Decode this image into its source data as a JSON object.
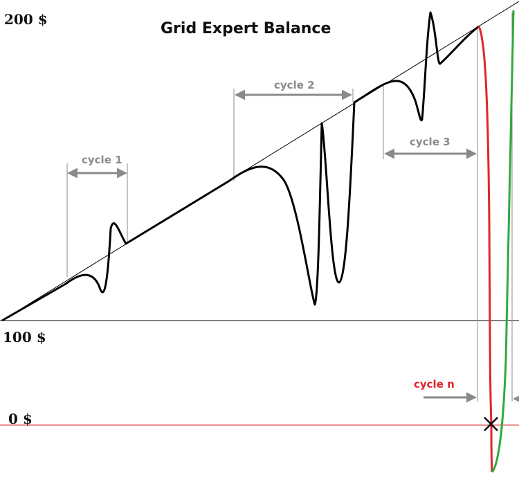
{
  "title": "Grid Expert Balance",
  "axis": {
    "top_label": "200 $",
    "mid_label": "100 $",
    "bottom_label": "0 $"
  },
  "cycles": {
    "cycle1": "cycle 1",
    "cycle2": "cycle 2",
    "cycle3": "cycle 3",
    "cyclen": "cycle n"
  },
  "colors": {
    "balance_line": "#000000",
    "guide_line": "#8a8a8a",
    "arrow": "#8a8a8a",
    "cycle_n": "#e0252c",
    "loss_curve": "#e0252c",
    "recovery_curve": "#2faa3c",
    "zero_line": "#e0252c"
  },
  "markers": {
    "failure_icon": "x-mark-icon"
  }
}
